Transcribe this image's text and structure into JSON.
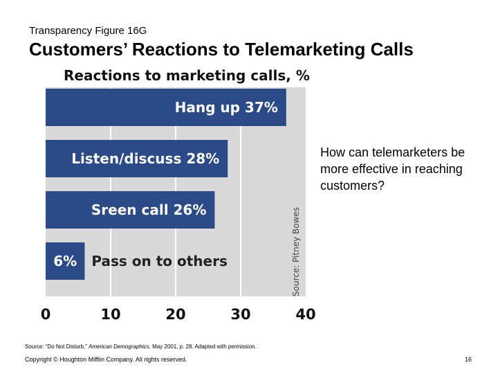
{
  "slide": {
    "subtitle": "Transparency Figure 16G",
    "title": "Customers’ Reactions to Telemarketing Calls",
    "question": "How can telemarketers be more effective in reaching customers?",
    "source_prefix": "Source: “Do Not Disturb,” ",
    "source_italic": "American Demographics",
    "source_suffix": ", May 2001, p. 28. Adapted with permission.",
    "copyright": "Copyright © Houghton Mifflin Company. All rights reserved.",
    "page_number": "16"
  },
  "colors": {
    "bar": "#2b4a88",
    "plot_background": "#d9d9d9",
    "gridline": "#ffffff"
  },
  "chart_data": {
    "type": "bar",
    "orientation": "horizontal",
    "title": "Reactions to marketing calls, %",
    "source": "Source: Pitney Bowes",
    "categories": [
      "Hang up",
      "Listen/discuss",
      "Sreen call",
      "Pass on to others"
    ],
    "values": [
      37,
      28,
      26,
      6
    ],
    "labels": [
      "Hang up 37%",
      "Listen/discuss 28%",
      "Sreen call 26%",
      "6%"
    ],
    "outside_label": "Pass on to others",
    "xlim": [
      0,
      40
    ],
    "xticks": [
      "0",
      "10",
      "20",
      "30",
      "40"
    ],
    "grid": true
  }
}
